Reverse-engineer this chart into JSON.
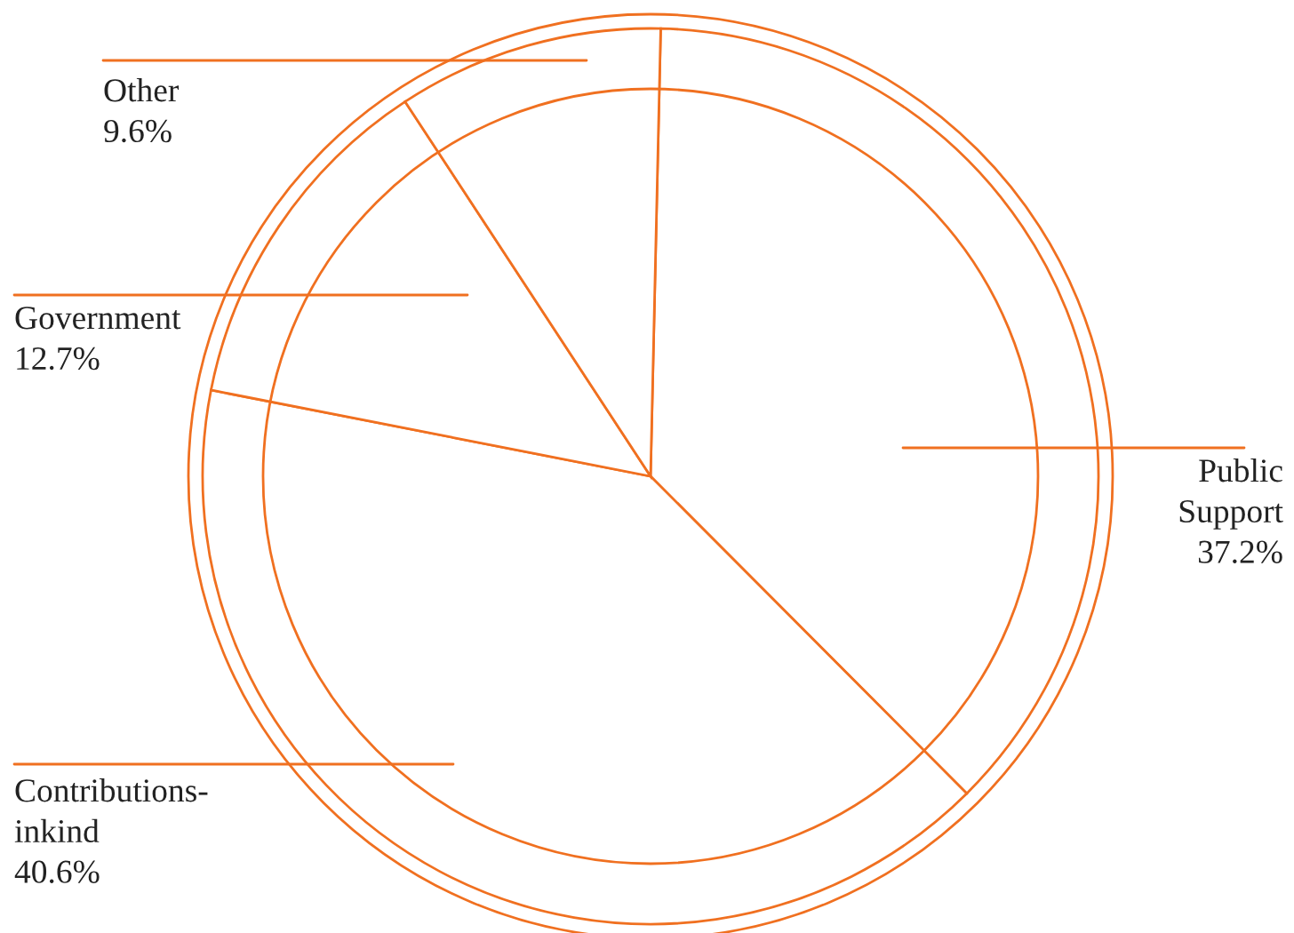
{
  "chart_data": {
    "type": "pie",
    "categories": [
      "Public Support",
      "Contributions-inkind",
      "Government",
      "Other"
    ],
    "values": [
      37.2,
      40.6,
      12.7,
      9.6
    ],
    "value_labels": [
      "37.2%",
      "40.6%",
      "12.7%",
      "9.6%"
    ],
    "colors": [
      "#ffffff",
      "#ffffff",
      "#ffffff",
      "#ffffff"
    ]
  }
}
